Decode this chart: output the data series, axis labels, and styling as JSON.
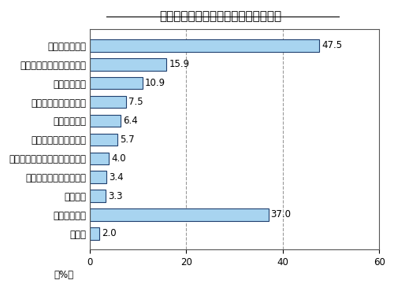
{
  "title": "トマトケチャップの効能・特徴の認知",
  "categories": [
    "無回答",
    "いずれもない",
    "美白効果",
    "魚や肉をやわらかくする",
    "脂肪燃焼効果、ダイエット効果",
    "魚や肉のくさみをとる",
    "中性脂肪低下",
    "血糖値の上昇を抑える",
    "栄養価が高い",
    "だし、うまみ調味料になる",
    "リコピンが豊富"
  ],
  "values": [
    2.0,
    37.0,
    3.3,
    3.4,
    4.0,
    5.7,
    6.4,
    7.5,
    10.9,
    15.9,
    47.5
  ],
  "bar_color": "#a8d4f0",
  "bar_edgecolor": "#1f3f6e",
  "xlim": [
    0,
    60
  ],
  "xticks": [
    0,
    20,
    40,
    60
  ],
  "xlabel": "（%）",
  "title_fontsize": 11,
  "tick_fontsize": 8.5,
  "value_fontsize": 8.5,
  "xlabel_fontsize": 8.5,
  "background_color": "#ffffff",
  "grid_color": "#999999",
  "vline_positions": [
    20,
    40
  ]
}
